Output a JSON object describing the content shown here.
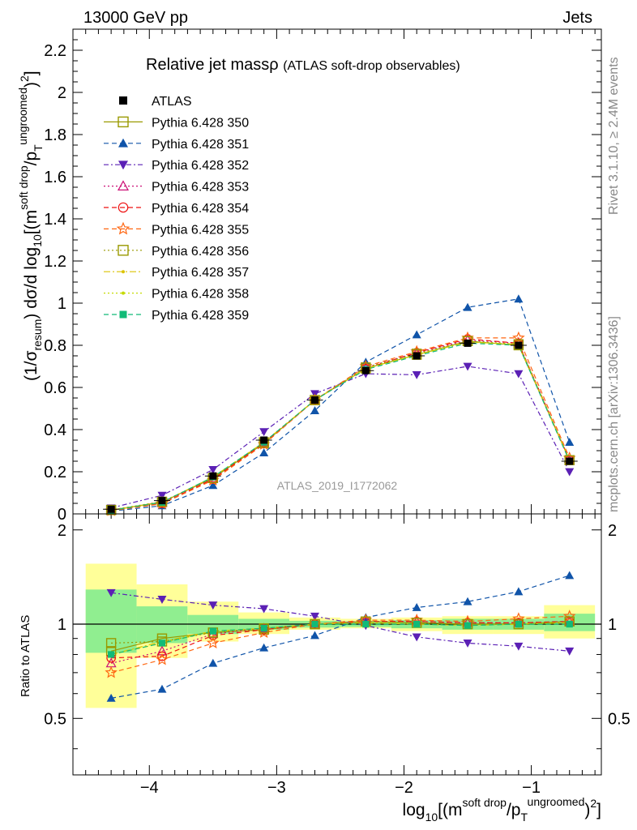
{
  "header": {
    "left": "13000 GeV pp",
    "right": "Jets"
  },
  "side": {
    "rivet": "Rivet 3.1.10, ≥ 2.4M events",
    "mcplots": "mcplots.cern.ch [arXiv:1306.3436]"
  },
  "colors": {
    "band_inner": "#90ee90",
    "band_outer": "#ffff99"
  },
  "chart_data": {
    "type": "line",
    "title": "Relative jet massρ",
    "subtitle": "(ATLAS soft-drop observables)",
    "watermark": "ATLAS_2019_I1772062",
    "ylabel_main": "(1/σ_resum) dσ/d log10[(m^soft drop/p_T^ungroomed)^2]",
    "ylabel_ratio": "Ratio to ATLAS",
    "xlabel": "log10[(m^soft drop/p_T^ungroomed)^2]",
    "xlim": [
      -4.6,
      -0.45
    ],
    "ylim_main": [
      0,
      2.3
    ],
    "ylim_ratio": [
      0.33,
      2.25
    ],
    "yticks_main": [
      "0",
      "0.2",
      "0.4",
      "0.6",
      "0.8",
      "1",
      "1.2",
      "1.4",
      "1.6",
      "1.8",
      "2",
      "2.2"
    ],
    "yticks_ratio": [
      "0.5",
      "1",
      "2"
    ],
    "xticks": [
      "−4",
      "−3",
      "−2",
      "−1"
    ],
    "bin_edges": [
      -4.5,
      -4.1,
      -3.7,
      -3.3,
      -2.9,
      -2.5,
      -2.1,
      -1.7,
      -1.3,
      -0.9,
      -0.5
    ],
    "x": [
      -4.3,
      -3.9,
      -3.5,
      -3.1,
      -2.7,
      -2.3,
      -1.9,
      -1.5,
      -1.1,
      -0.7
    ],
    "band_inner": [
      [
        0.81,
        1.29
      ],
      [
        0.87,
        1.14
      ],
      [
        0.93,
        1.07
      ],
      [
        0.96,
        1.04
      ],
      [
        0.975,
        1.025
      ],
      [
        0.98,
        1.02
      ],
      [
        0.97,
        1.03
      ],
      [
        0.96,
        1.04
      ],
      [
        0.96,
        1.04
      ],
      [
        0.95,
        1.08
      ]
    ],
    "band_outer": [
      [
        0.54,
        1.56
      ],
      [
        0.78,
        1.34
      ],
      [
        0.88,
        1.18
      ],
      [
        0.93,
        1.09
      ],
      [
        0.96,
        1.05
      ],
      [
        0.97,
        1.04
      ],
      [
        0.95,
        1.05
      ],
      [
        0.93,
        1.06
      ],
      [
        0.93,
        1.06
      ],
      [
        0.9,
        1.15
      ]
    ],
    "data": {
      "name": "ATLAS",
      "values": [
        0.022,
        0.063,
        0.18,
        0.35,
        0.54,
        0.68,
        0.75,
        0.81,
        0.8,
        0.25
      ]
    },
    "series": [
      {
        "name": "Pythia 6.428 350",
        "color": "#999900",
        "dash": "",
        "marker": "square-open",
        "values": [
          0.018,
          0.056,
          0.17,
          0.335,
          0.54,
          0.69,
          0.755,
          0.82,
          0.8,
          0.255
        ],
        "ratio": [
          0.82,
          0.9,
          0.94,
          0.96,
          1.0,
          1.02,
          1.01,
          1.0,
          1.0,
          1.02
        ]
      },
      {
        "name": "Pythia 6.428 351",
        "color": "#1054a9",
        "dash": "6,4",
        "marker": "triangle-up",
        "values": [
          0.013,
          0.039,
          0.135,
          0.29,
          0.49,
          0.72,
          0.85,
          0.98,
          1.02,
          0.34
        ],
        "ratio": [
          0.58,
          0.62,
          0.75,
          0.84,
          0.92,
          1.05,
          1.13,
          1.18,
          1.27,
          1.43
        ]
      },
      {
        "name": "Pythia 6.428 352",
        "color": "#5b20b5",
        "dash": "6,3,2,3",
        "marker": "triangle-down",
        "values": [
          0.028,
          0.088,
          0.21,
          0.39,
          0.57,
          0.665,
          0.66,
          0.7,
          0.665,
          0.2
        ],
        "ratio": [
          1.26,
          1.2,
          1.15,
          1.12,
          1.06,
          0.99,
          0.91,
          0.87,
          0.85,
          0.82
        ]
      },
      {
        "name": "Pythia 6.428 353",
        "color": "#cc1177",
        "dash": "2,3",
        "marker": "triangle-open",
        "values": [
          0.016,
          0.052,
          0.17,
          0.34,
          0.54,
          0.695,
          0.765,
          0.825,
          0.81,
          0.255
        ],
        "ratio": [
          0.75,
          0.82,
          0.93,
          0.97,
          1.0,
          1.02,
          1.02,
          1.01,
          1.01,
          1.02
        ]
      },
      {
        "name": "Pythia 6.428 354",
        "color": "#ee1111",
        "dash": "6,4",
        "marker": "circle-open",
        "values": [
          0.017,
          0.05,
          0.165,
          0.335,
          0.54,
          0.69,
          0.765,
          0.83,
          0.81,
          0.255
        ],
        "ratio": [
          0.78,
          0.79,
          0.92,
          0.96,
          1.0,
          1.02,
          1.02,
          1.01,
          1.01,
          1.02
        ]
      },
      {
        "name": "Pythia 6.428 355",
        "color": "#ff6611",
        "dash": "6,4",
        "marker": "star-open",
        "values": [
          0.015,
          0.048,
          0.16,
          0.33,
          0.54,
          0.7,
          0.77,
          0.835,
          0.835,
          0.265
        ],
        "ratio": [
          0.7,
          0.77,
          0.87,
          0.94,
          1.0,
          1.03,
          1.03,
          1.02,
          1.04,
          1.06
        ]
      },
      {
        "name": "Pythia 6.428 356",
        "color": "#999900",
        "dash": "2,3",
        "marker": "square-open",
        "values": [
          0.019,
          0.058,
          0.17,
          0.34,
          0.54,
          0.695,
          0.76,
          0.82,
          0.805,
          0.255
        ],
        "ratio": [
          0.87,
          0.88,
          0.94,
          0.97,
          1.0,
          1.02,
          1.01,
          1.0,
          1.0,
          1.02
        ]
      },
      {
        "name": "Pythia 6.428 357",
        "color": "#dcc300",
        "dash": "8,3,2,3",
        "marker": "dot",
        "values": [
          0.017,
          0.055,
          0.175,
          0.34,
          0.54,
          0.69,
          0.755,
          0.815,
          0.805,
          0.255
        ],
        "ratio": [
          0.8,
          0.88,
          0.95,
          0.97,
          1.0,
          1.01,
          1.0,
          0.99,
          1.0,
          1.01
        ]
      },
      {
        "name": "Pythia 6.428 358",
        "color": "#c5d900",
        "dash": "2,3",
        "marker": "dot",
        "values": [
          0.017,
          0.055,
          0.175,
          0.34,
          0.54,
          0.69,
          0.755,
          0.815,
          0.805,
          0.255
        ],
        "ratio": [
          0.8,
          0.87,
          0.95,
          0.97,
          1.0,
          1.01,
          1.0,
          0.99,
          1.0,
          1.01
        ]
      },
      {
        "name": "Pythia 6.428 359",
        "color": "#11bb77",
        "dash": "6,4",
        "marker": "square-filled",
        "values": [
          0.017,
          0.055,
          0.175,
          0.34,
          0.54,
          0.685,
          0.75,
          0.81,
          0.8,
          0.25
        ],
        "ratio": [
          0.8,
          0.87,
          0.95,
          0.97,
          1.0,
          1.0,
          1.0,
          0.99,
          1.0,
          1.0
        ]
      }
    ]
  }
}
